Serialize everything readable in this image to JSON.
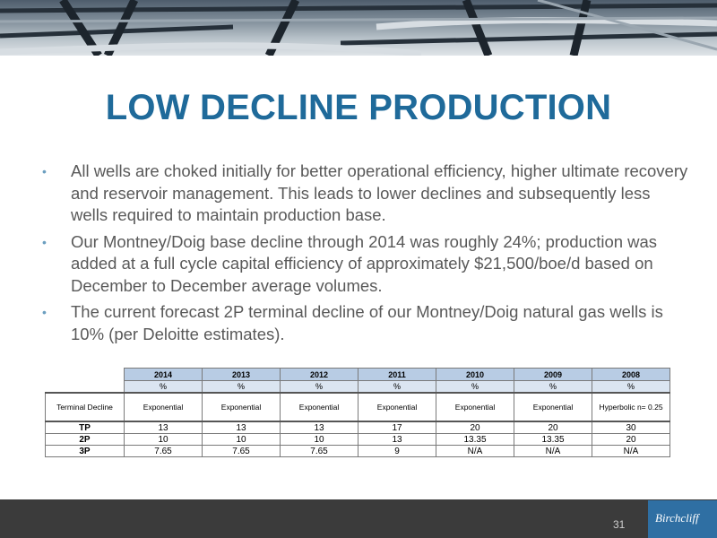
{
  "title": "LOW DECLINE PRODUCTION",
  "bullets": [
    "All wells are choked initially for better operational efficiency, higher ultimate recovery and reservoir management. This leads to lower declines and subsequently less wells required to maintain production base.",
    "Our Montney/Doig base decline through 2014 was roughly 24%; production was added at a full cycle capital efficiency of approximately $21,500/boe/d based on December to December average volumes.",
    "The current forecast 2P terminal decline of our Montney/Doig natural gas wells is 10% (per Deloitte estimates)."
  ],
  "table": {
    "years": [
      "2014",
      "2013",
      "2012",
      "2011",
      "2010",
      "2009",
      "2008"
    ],
    "units": [
      "%",
      "%",
      "%",
      "%",
      "%",
      "%",
      "%"
    ],
    "terminal_label": "Terminal Decline",
    "terminal": [
      "Exponential",
      "Exponential",
      "Exponential",
      "Exponential",
      "Exponential",
      "Exponential",
      "Hyperbolic n= 0.25"
    ],
    "rows": [
      {
        "label": "TP",
        "values": [
          "13",
          "13",
          "13",
          "17",
          "20",
          "20",
          "30"
        ]
      },
      {
        "label": "2P",
        "values": [
          "10",
          "10",
          "10",
          "13",
          "13.35",
          "13.35",
          "20"
        ]
      },
      {
        "label": "3P",
        "values": [
          "7.65",
          "7.65",
          "7.65",
          "9",
          "N/A",
          "N/A",
          "N/A"
        ]
      }
    ]
  },
  "page_number": "31",
  "logo_text": "Birchcliff",
  "colors": {
    "title": "#1f6a9a",
    "header_fill": "#b8cce4",
    "unit_fill": "#dbe5f1",
    "footer": "#3b3b3b",
    "logo": "#2f6fa3"
  }
}
